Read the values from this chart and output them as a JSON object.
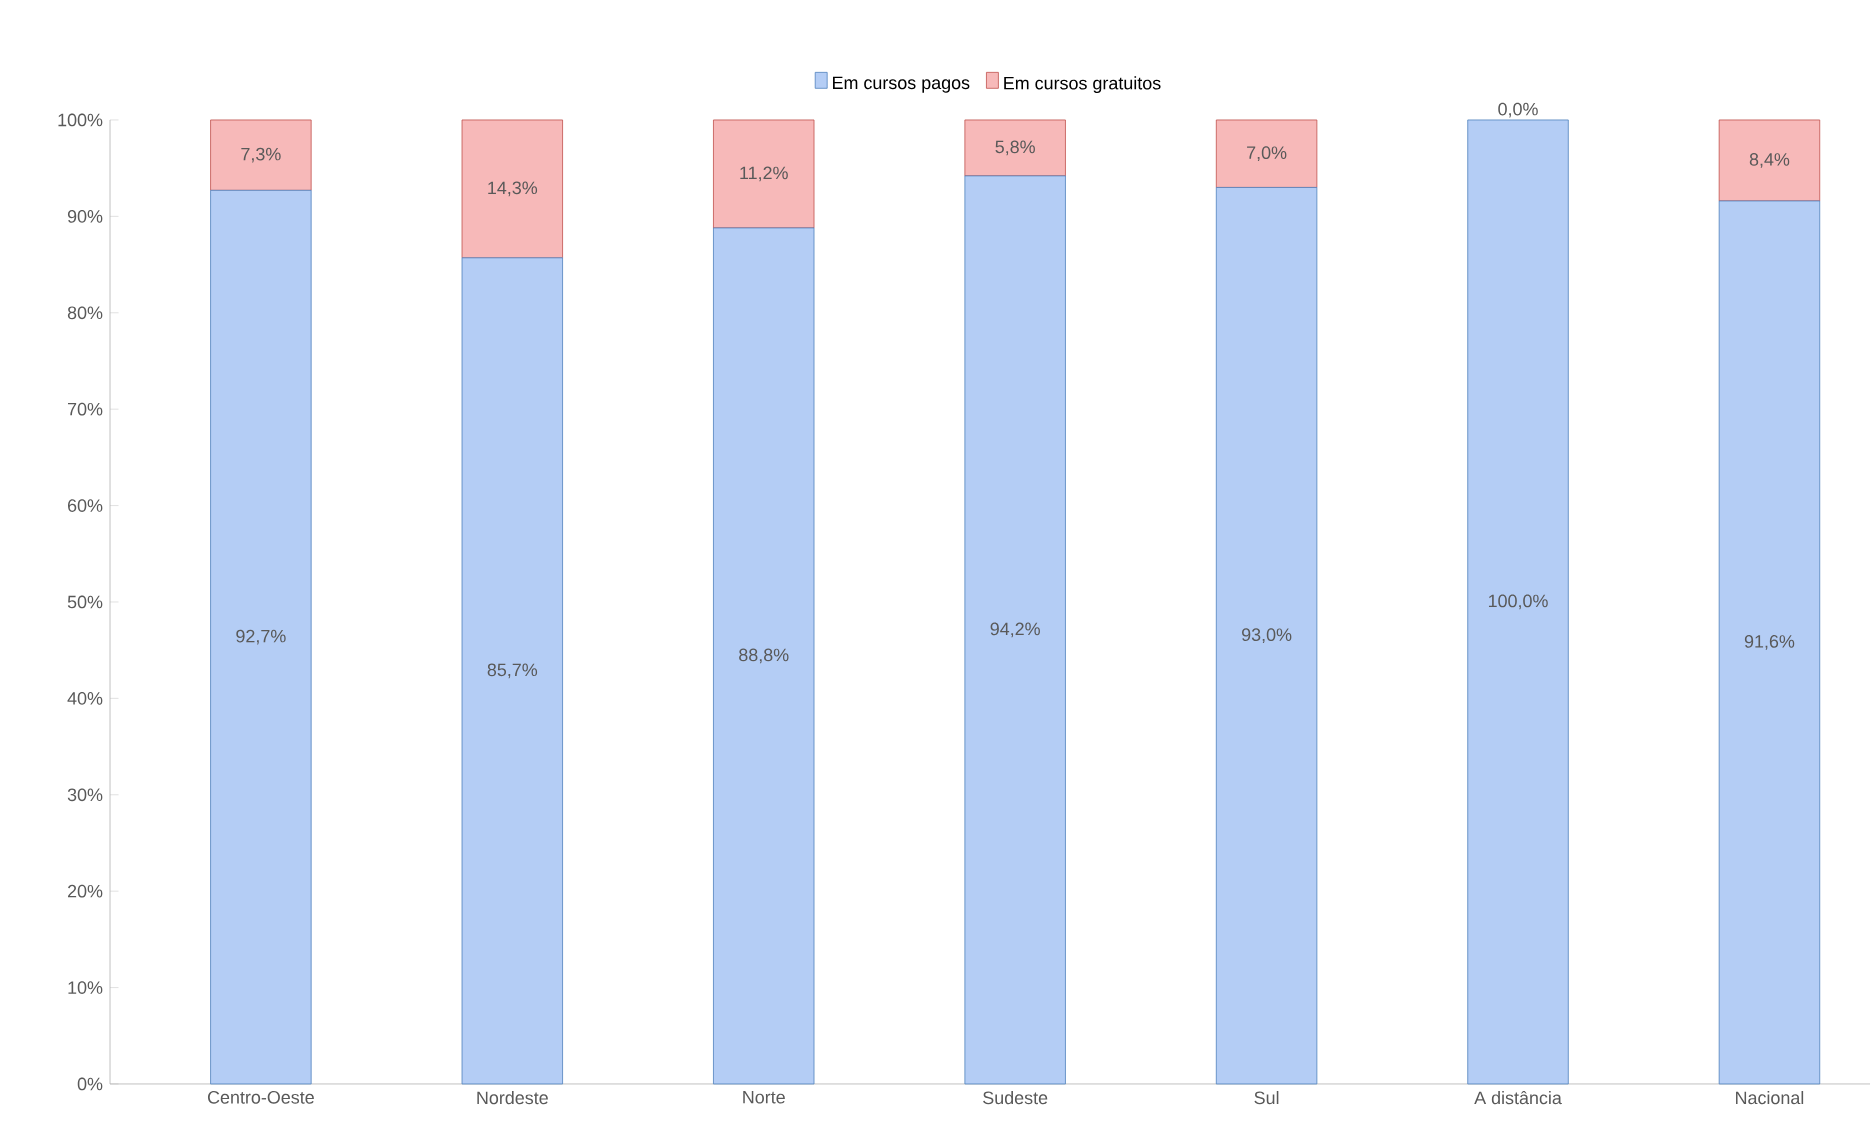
{
  "chart_data": {
    "type": "bar",
    "stacked": true,
    "legend": "top",
    "categories": [
      "Centro-Oeste",
      "Nordeste",
      "Norte",
      "Sudeste",
      "Sul",
      "A distância",
      "Nacional"
    ],
    "series": [
      {
        "name": "Em cursos pagos",
        "color": "#b4cdf5",
        "values": [
          92.7,
          85.7,
          88.8,
          94.2,
          93.0,
          100.0,
          91.6
        ],
        "value_labels": [
          "92,7%",
          "85,7%",
          "88,8%",
          "94,2%",
          "93,0%",
          "100,0%",
          "91,6%"
        ]
      },
      {
        "name": "Em cursos gratuitos",
        "color": "#f7b9b9",
        "values": [
          7.3,
          14.3,
          11.2,
          5.8,
          7.0,
          0.0,
          8.4
        ],
        "value_labels": [
          "7,3%",
          "14,3%",
          "11,2%",
          "5,8%",
          "7,0%",
          "0,0%",
          "8,4%"
        ]
      }
    ],
    "ylim": [
      0,
      100
    ],
    "yticks": [
      {
        "value": 0,
        "label": "0%"
      },
      {
        "value": 10,
        "label": "10%"
      },
      {
        "value": 20,
        "label": "20%"
      },
      {
        "value": 30,
        "label": "30%"
      },
      {
        "value": 40,
        "label": "40%"
      },
      {
        "value": 50,
        "label": "50%"
      },
      {
        "value": 60,
        "label": "60%"
      },
      {
        "value": 70,
        "label": "70%"
      },
      {
        "value": 80,
        "label": "80%"
      },
      {
        "value": 90,
        "label": "90%"
      },
      {
        "value": 100,
        "label": "100%"
      }
    ]
  }
}
